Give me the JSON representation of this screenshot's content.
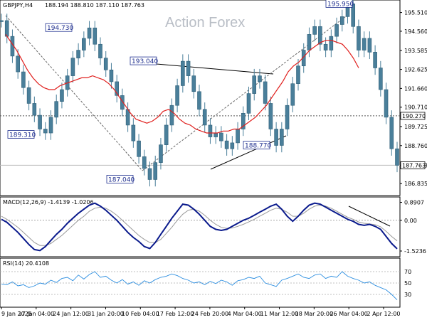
{
  "symbol_header": "GBPJPY,H4",
  "ohlc_values": "188.194 188.810 187.110 187.763",
  "watermark": "Action Forex",
  "price_axis": {
    "ticks": [
      "195.510",
      "194.560",
      "193.585",
      "192.625",
      "191.660",
      "190.710",
      "189.725",
      "188.760",
      "187.763",
      "186.835"
    ],
    "range": [
      186.3,
      196.0
    ]
  },
  "current_price": "187.763",
  "horizontal_level": "190.270",
  "price_annotations": [
    {
      "label": "194.730",
      "value": 194.73
    },
    {
      "label": "189.310",
      "value": 189.31
    },
    {
      "label": "193.040",
      "value": 193.04
    },
    {
      "label": "187.040",
      "value": 187.04
    },
    {
      "label": "188.770",
      "value": 188.77
    },
    {
      "label": "195.950",
      "value": 195.95
    }
  ],
  "macd": {
    "label": "MACD(12,26,9) -1.4139 -1.0206",
    "ticks": [
      "0.8907",
      "0.00",
      "-1.5236"
    ],
    "range": [
      -1.7,
      1.05
    ]
  },
  "rsi": {
    "label": "RSI(14) 20.4108",
    "ticks": [
      "70",
      "50",
      "30"
    ],
    "range": [
      10,
      90
    ]
  },
  "time_axis": [
    "9 Jan 2025",
    "17 Jan 04:00",
    "24 Jan 12:00",
    "31 Jan 20:00",
    "10 Feb 04:00",
    "17 Feb 12:00",
    "24 Feb 20:00",
    "4 Mar 04:00",
    "11 Mar 12:00",
    "18 Mar 20:00",
    "26 Mar 04:00",
    "2 Apr 12:00"
  ],
  "colors": {
    "candles": "#4a7f9a",
    "ma": "#e0201e",
    "macd_line": "#0a1a8c",
    "signal_line": "#9a9a9a",
    "rsi_line": "#2c8ee0",
    "annotation": "#1f2f8f"
  },
  "chart_data": {
    "type": "line",
    "series": [
      {
        "values": [
          195.1,
          194.3,
          193.3,
          192.5,
          191.7,
          190.9,
          190.3,
          189.6,
          189.4,
          190.2,
          191.0,
          191.6,
          192.3,
          193.2,
          193.6,
          194.2,
          194.73,
          193.9,
          193.2,
          192.6,
          192.0,
          191.3,
          190.6,
          189.8,
          189.0,
          188.2,
          187.6,
          187.04,
          187.9,
          188.8,
          189.8,
          190.8,
          191.8,
          193.04,
          192.3,
          191.5,
          190.6,
          189.8,
          189.2,
          189.4,
          189.0,
          188.6,
          188.9,
          189.6,
          190.4,
          191.4,
          192.3,
          192.0,
          190.9,
          189.6,
          188.77,
          189.6,
          190.8,
          191.9,
          192.8,
          193.6,
          194.4,
          194.8,
          193.9,
          193.6,
          194.3,
          194.9,
          195.3,
          195.95,
          194.8,
          193.6,
          194.2,
          193.5,
          192.7,
          191.6,
          190.2,
          188.6,
          187.763
        ]
      },
      {
        "values": [
          194.4,
          194.0,
          193.6,
          193.1,
          192.6,
          192.2,
          191.9,
          191.7,
          191.6,
          191.6,
          191.8,
          191.9,
          192.0,
          192.1,
          192.2,
          192.2,
          192.3,
          192.2,
          192.1,
          191.9,
          191.6,
          191.2,
          190.8,
          190.4,
          190.1,
          190.0,
          189.9,
          190.0,
          190.2,
          190.5,
          190.6,
          190.4,
          190.1,
          189.9,
          189.8,
          189.6,
          189.5,
          189.4,
          189.4,
          189.4,
          189.5,
          189.5,
          189.6,
          189.6,
          189.8,
          190.0,
          190.2,
          190.5,
          190.8,
          191.2,
          191.6,
          192.0,
          192.5,
          192.8,
          193.0,
          193.3,
          193.6,
          193.8,
          194.0,
          194.1,
          194.1,
          194.0,
          193.9,
          193.6,
          193.2,
          192.7
        ]
      },
      {
        "values": [
          0.05,
          -0.1,
          -0.35,
          -0.6,
          -0.9,
          -1.2,
          -1.45,
          -1.5,
          -1.3,
          -1.0,
          -0.7,
          -0.45,
          -0.15,
          0.1,
          0.35,
          0.55,
          0.75,
          0.85,
          0.7,
          0.5,
          0.25,
          0.0,
          -0.3,
          -0.6,
          -0.85,
          -1.05,
          -1.3,
          -1.4,
          -1.1,
          -0.7,
          -0.3,
          0.1,
          0.45,
          0.8,
          0.75,
          0.55,
          0.3,
          0.0,
          -0.3,
          -0.45,
          -0.5,
          -0.45,
          -0.3,
          -0.15,
          0.0,
          0.1,
          0.25,
          0.4,
          0.55,
          0.7,
          0.8,
          0.55,
          0.2,
          -0.05,
          0.2,
          0.5,
          0.75,
          0.85,
          0.8,
          0.65,
          0.5,
          0.35,
          0.2,
          0.05,
          -0.05,
          -0.2,
          -0.25,
          -0.2,
          -0.3,
          -0.45,
          -0.8,
          -1.15,
          -1.4139
        ]
      },
      {
        "values": [
          0.2,
          0.05,
          -0.15,
          -0.35,
          -0.6,
          -0.85,
          -1.1,
          -1.25,
          -1.25,
          -1.15,
          -0.95,
          -0.75,
          -0.5,
          -0.25,
          0.0,
          0.2,
          0.45,
          0.6,
          0.65,
          0.6,
          0.45,
          0.25,
          0.0,
          -0.25,
          -0.5,
          -0.75,
          -0.95,
          -1.1,
          -1.1,
          -0.95,
          -0.65,
          -0.35,
          0.0,
          0.3,
          0.5,
          0.55,
          0.45,
          0.25,
          0.0,
          -0.2,
          -0.35,
          -0.4,
          -0.38,
          -0.3,
          -0.2,
          -0.08,
          0.05,
          0.2,
          0.35,
          0.5,
          0.6,
          0.55,
          0.4,
          0.2,
          0.2,
          0.35,
          0.55,
          0.7,
          0.75,
          0.7,
          0.6,
          0.45,
          0.3,
          0.15,
          0.05,
          -0.08,
          -0.15,
          -0.18,
          -0.22,
          -0.32,
          -0.55,
          -0.8,
          -1.0206
        ]
      },
      {
        "values": [
          48,
          47,
          52,
          45,
          47,
          42,
          45,
          50,
          48,
          55,
          51,
          58,
          60,
          54,
          64,
          57,
          65,
          70,
          60,
          62,
          55,
          50,
          56,
          48,
          52,
          46,
          54,
          50,
          56,
          60,
          62,
          66,
          63,
          58,
          55,
          50,
          52,
          47,
          53,
          49,
          55,
          52,
          46,
          54,
          56,
          60,
          58,
          62,
          50,
          47,
          44,
          55,
          58,
          62,
          66,
          60,
          58,
          64,
          66,
          58,
          62,
          60,
          70,
          62,
          58,
          55,
          50,
          52,
          46,
          42,
          38,
          30,
          20.4108
        ]
      }
    ],
    "ylim": [
      186.3,
      196.0
    ]
  }
}
